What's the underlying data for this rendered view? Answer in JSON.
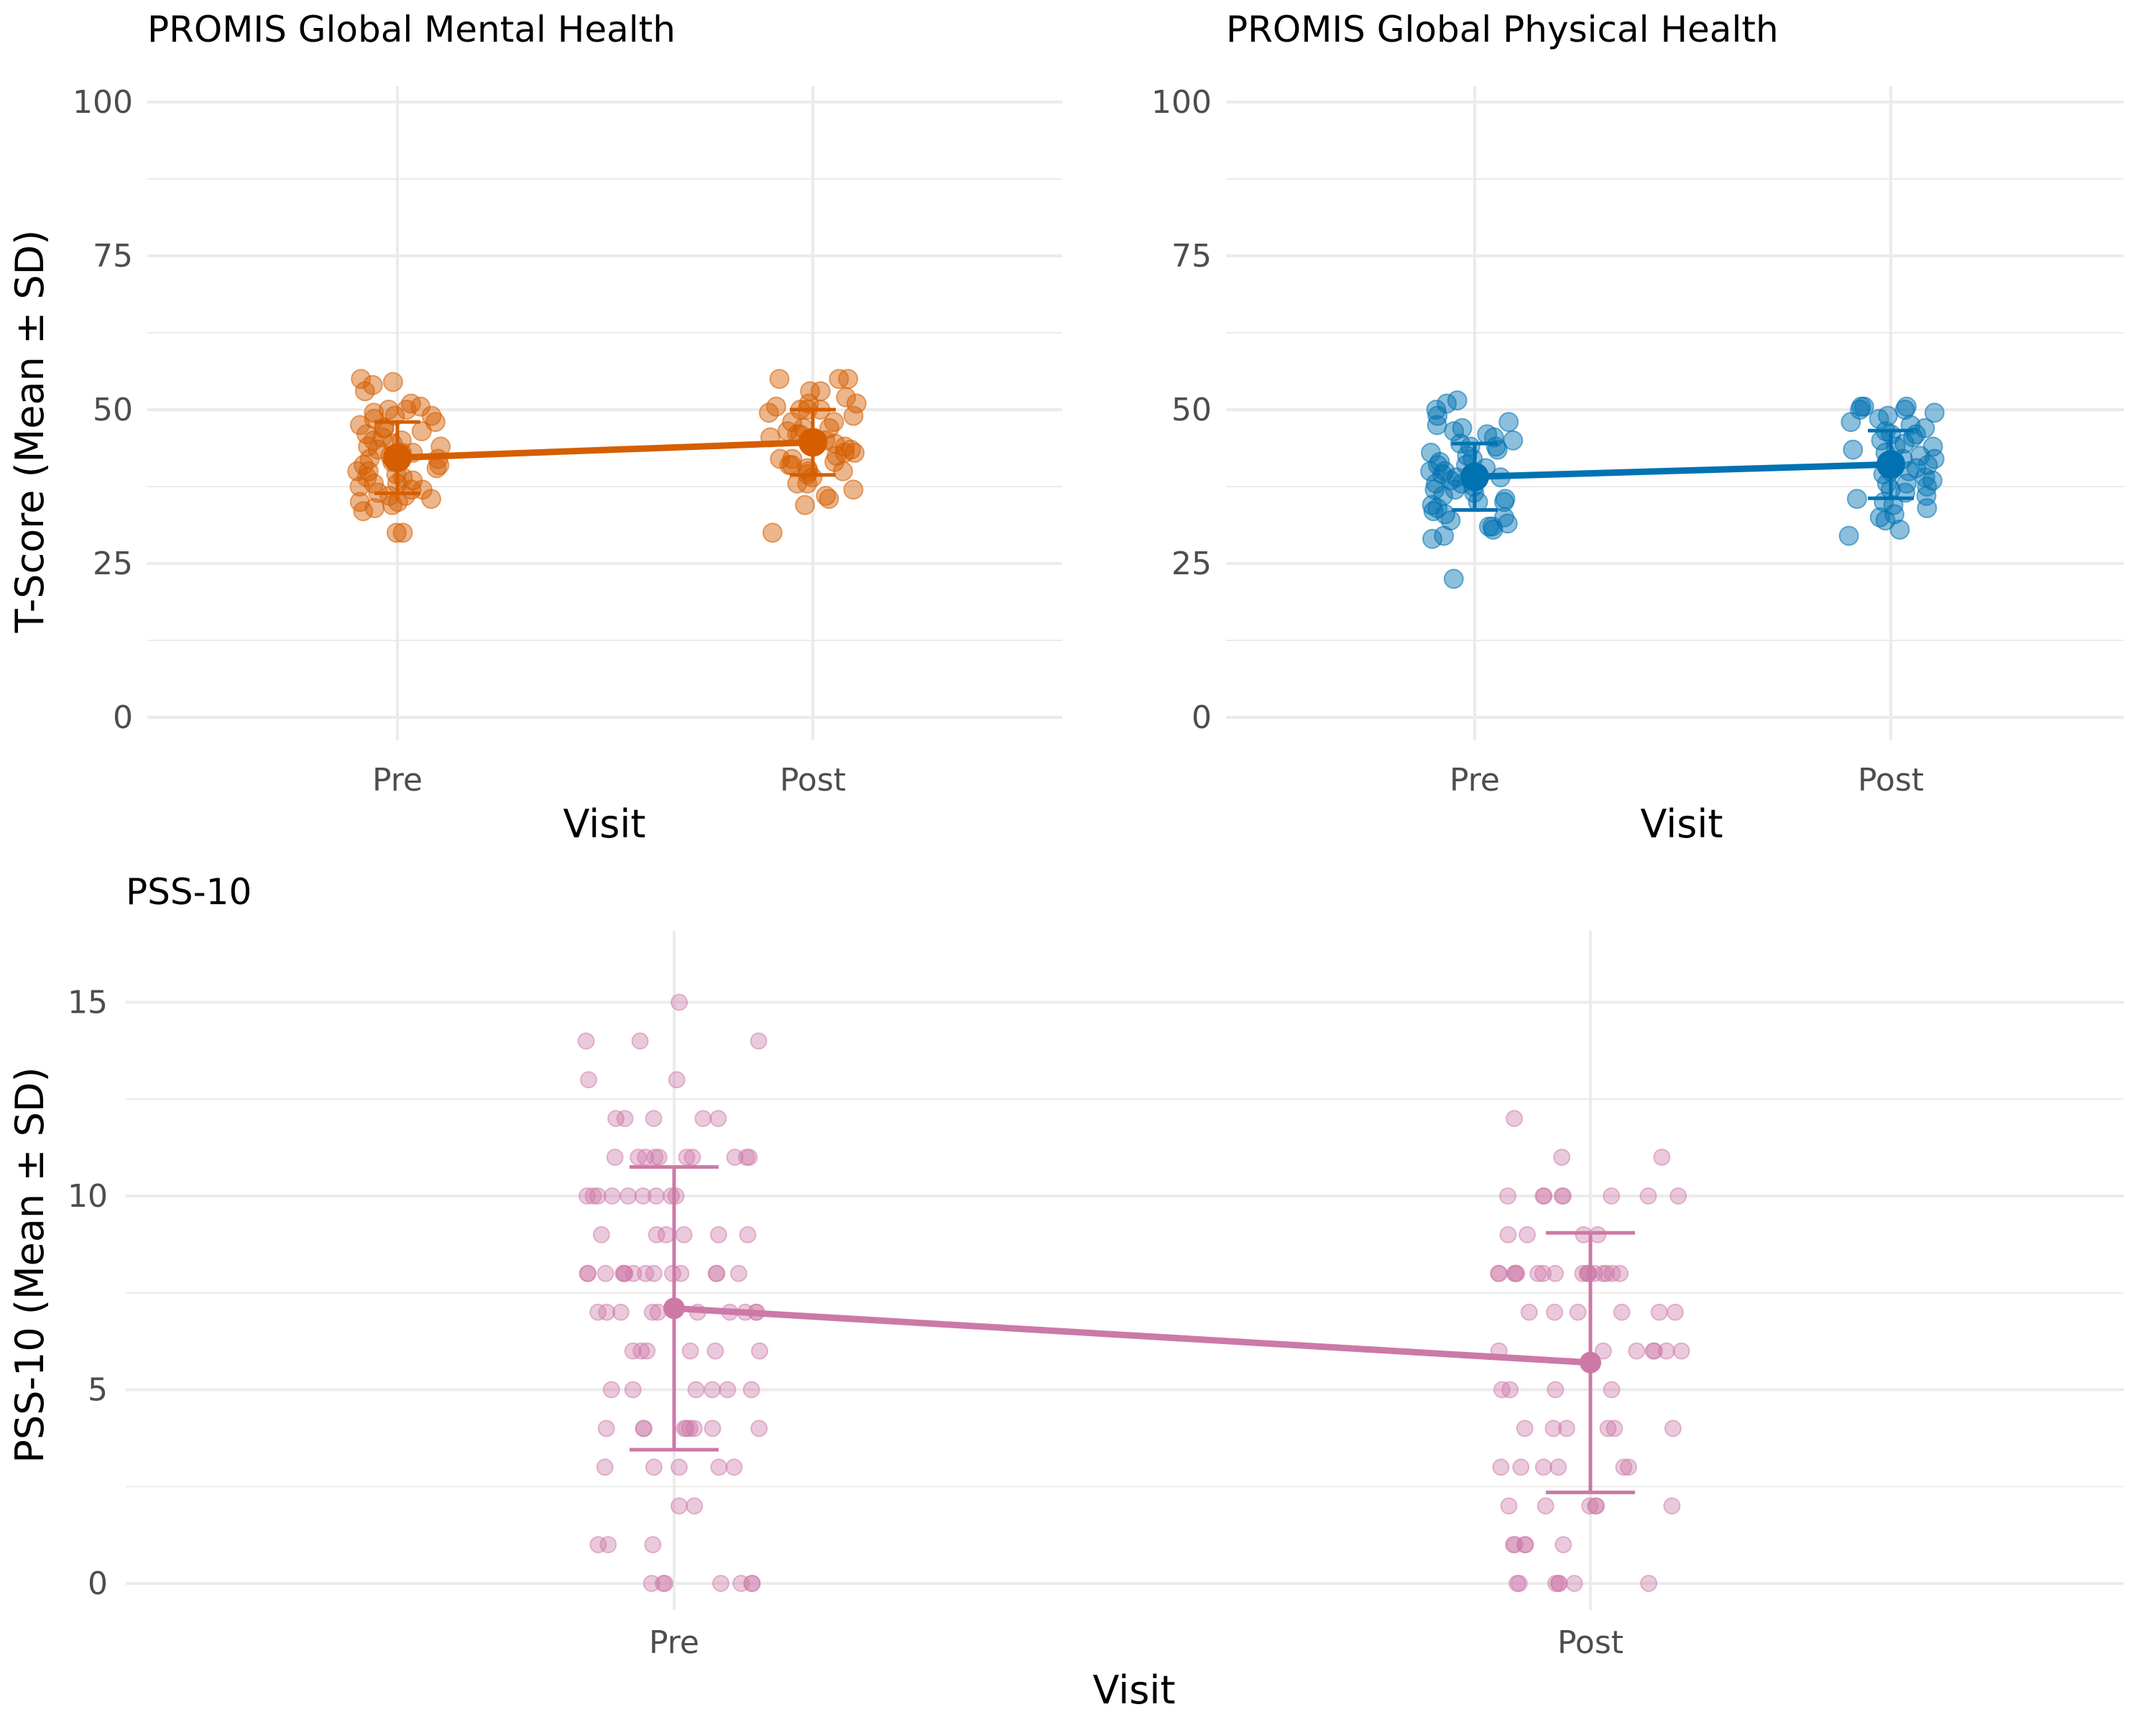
{
  "colors": {
    "mental": "#D55E00",
    "physical": "#0072B2",
    "pss": "#CC79A7",
    "grid": "#EBEBEB",
    "tick_text": "#4D4D4D"
  },
  "chart_data": [
    {
      "id": "mental",
      "type": "scatter",
      "title": "PROMIS Global Mental Health",
      "xlabel": "Visit",
      "ylabel": "T-Score (Mean ± SD)",
      "categories": [
        "Pre",
        "Post"
      ],
      "ylim": [
        0,
        100
      ],
      "yticks": [
        0,
        25,
        50,
        75,
        100
      ],
      "grid": true,
      "summary": [
        {
          "visit": "Pre",
          "mean": 42.2,
          "sd": 5.8
        },
        {
          "visit": "Post",
          "mean": 44.7,
          "sd": 5.3
        }
      ],
      "points": {
        "Pre": [
          30,
          30,
          33.5,
          34,
          34.5,
          35,
          35,
          35.5,
          36,
          36,
          36.5,
          37,
          37,
          37.5,
          38,
          38,
          38.5,
          39,
          39,
          39.5,
          40,
          40,
          40.5,
          41,
          41,
          41.5,
          42,
          42,
          42.5,
          43,
          43,
          43.5,
          44,
          44,
          44.5,
          45,
          45,
          45.5,
          46,
          46.5,
          47,
          47,
          47.5,
          48,
          48.5,
          49,
          49,
          49.5,
          50,
          50,
          50.5,
          51,
          53,
          54,
          54.5,
          55
        ],
        "Post": [
          30,
          34.5,
          35.5,
          36,
          37,
          38,
          38,
          39,
          39.5,
          40,
          40,
          40.5,
          41,
          41,
          41.5,
          42,
          42,
          42.5,
          43,
          43,
          43.5,
          44,
          44.5,
          45,
          45,
          45.5,
          46,
          46,
          46.5,
          47,
          47,
          48,
          48,
          49,
          49.5,
          50,
          50,
          50,
          50.5,
          51,
          51,
          52,
          53,
          53,
          55,
          55,
          55
        ]
      }
    },
    {
      "id": "physical",
      "type": "scatter",
      "title": "PROMIS Global Physical Health",
      "xlabel": "Visit",
      "ylabel": "",
      "categories": [
        "Pre",
        "Post"
      ],
      "ylim": [
        0,
        100
      ],
      "yticks": [
        0,
        25,
        50,
        75,
        100
      ],
      "grid": true,
      "summary": [
        {
          "visit": "Pre",
          "mean": 39.1,
          "sd": 5.4
        },
        {
          "visit": "Post",
          "mean": 41.1,
          "sd": 5.5
        }
      ],
      "points": {
        "Pre": [
          22.5,
          29,
          29.5,
          30.5,
          31,
          31,
          31.5,
          32,
          32.5,
          33,
          33.5,
          34,
          34.5,
          35,
          35,
          35.5,
          36,
          36.5,
          37,
          37,
          37.5,
          38,
          38,
          38.5,
          39,
          39,
          39.5,
          40,
          40,
          40.5,
          41,
          41,
          41.5,
          42,
          42.5,
          43,
          43.5,
          44,
          44,
          44.5,
          45,
          45.5,
          46,
          46.5,
          47,
          47.5,
          48,
          49,
          50,
          51,
          51.5
        ],
        "Post": [
          29.5,
          30.5,
          32,
          32.5,
          33,
          34,
          34.5,
          35,
          35.5,
          36,
          36.5,
          37,
          37.5,
          38,
          38,
          38.5,
          39,
          39.5,
          40,
          40,
          40.5,
          41,
          41.5,
          42,
          42,
          42.5,
          43,
          43.5,
          44,
          44,
          44.5,
          45,
          45.5,
          46,
          46,
          46.5,
          47,
          47.5,
          48,
          48.5,
          49,
          49.5,
          50,
          50,
          50.5,
          50.5,
          50.5
        ]
      }
    },
    {
      "id": "pss",
      "type": "scatter",
      "title": "PSS-10",
      "xlabel": "Visit",
      "ylabel": "PSS-10 (Mean ± SD)",
      "categories": [
        "Pre",
        "Post"
      ],
      "ylim": [
        0,
        16.5
      ],
      "yticks": [
        0,
        5,
        10,
        15
      ],
      "grid": true,
      "summary": [
        {
          "visit": "Pre",
          "mean": 7.1,
          "sd": 3.65
        },
        {
          "visit": "Post",
          "mean": 5.7,
          "sd": 3.35
        }
      ],
      "points": {
        "Pre": [
          15,
          14,
          14,
          14,
          13,
          13,
          12,
          12,
          12,
          12,
          12,
          11,
          11,
          11,
          11,
          11,
          11,
          11,
          11,
          11,
          11,
          10,
          10,
          10,
          10,
          10,
          10,
          10,
          10,
          10,
          9,
          9,
          9,
          9,
          9,
          9,
          8,
          8,
          8,
          8,
          8,
          8,
          8,
          8,
          8,
          8,
          8,
          8,
          8,
          8,
          7,
          7,
          7,
          7,
          7,
          7,
          7,
          7,
          7,
          7,
          6,
          6,
          6,
          6,
          6,
          6,
          5,
          5,
          5,
          5,
          5,
          5,
          4,
          4,
          4,
          4,
          4,
          4,
          4,
          4,
          4,
          3,
          3,
          3,
          3,
          3,
          2,
          2,
          1,
          1,
          1,
          0,
          0,
          0,
          0,
          0,
          0,
          0
        ],
        "Post": [
          12,
          11,
          11,
          10,
          10,
          10,
          10,
          10,
          10,
          10,
          10,
          9,
          9,
          9,
          9,
          8,
          8,
          8,
          8,
          8,
          8,
          8,
          8,
          8,
          8,
          8,
          8,
          8,
          8,
          8,
          8,
          8,
          7,
          7,
          7,
          7,
          7,
          7,
          6,
          6,
          6,
          6,
          6,
          6,
          6,
          5,
          5,
          5,
          5,
          4,
          4,
          4,
          4,
          4,
          4,
          3,
          3,
          3,
          3,
          3,
          3,
          2,
          2,
          2,
          2,
          2,
          2,
          1,
          1,
          1,
          1,
          1,
          0,
          0,
          0,
          0,
          0,
          0,
          0
        ]
      }
    }
  ]
}
